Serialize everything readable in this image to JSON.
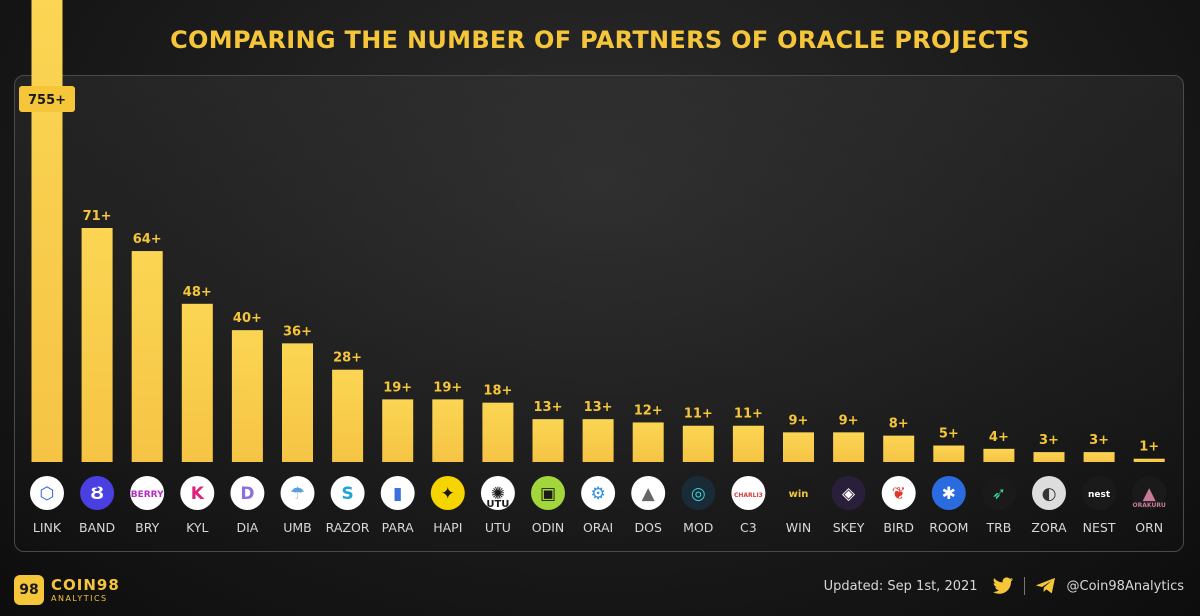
{
  "title": "COMPARING THE NUMBER OF PARTNERS OF ORACLE PROJECTS",
  "colors": {
    "bar_top": "#fbd553",
    "bar_bottom": "#f6c445",
    "accent": "#f5c53a",
    "label": "#f5c53a",
    "axis_text": "#d8d8d8"
  },
  "chart_data": {
    "type": "bar",
    "categories": [
      "LINK",
      "BAND",
      "BRY",
      "KYL",
      "DIA",
      "UMB",
      "RAZOR",
      "PARA",
      "HAPI",
      "UTU",
      "ODIN",
      "ORAI",
      "DOS",
      "MOD",
      "C3",
      "WIN",
      "SKEY",
      "BIRD",
      "ROOM",
      "TRB",
      "ZORA",
      "NEST",
      "ORN"
    ],
    "values": [
      755,
      71,
      64,
      48,
      40,
      36,
      28,
      19,
      19,
      18,
      13,
      13,
      12,
      11,
      11,
      9,
      9,
      8,
      5,
      4,
      3,
      3,
      1
    ],
    "data_labels": [
      "755+",
      "71+",
      "64+",
      "48+",
      "40+",
      "36+",
      "28+",
      "19+",
      "19+",
      "18+",
      "13+",
      "13+",
      "12+",
      "11+",
      "11+",
      "9+",
      "9+",
      "8+",
      "5+",
      "4+",
      "3+",
      "3+",
      "1+"
    ],
    "scale_max": 80,
    "outlier_note": "LINK bar exceeds axis range",
    "grid": false,
    "legend": "none"
  },
  "logos": [
    {
      "name": "chainlink",
      "bg": "#ffffff",
      "fg": "#2a5ada",
      "glyph": "⬡",
      "text": ""
    },
    {
      "name": "band",
      "bg": "#4a3fe0",
      "fg": "#ffffff",
      "glyph": "Ȣ",
      "text": ""
    },
    {
      "name": "berry",
      "bg": "#ffffff",
      "fg": "#b42ec2",
      "glyph": "",
      "text": "BERRY"
    },
    {
      "name": "kylin",
      "bg": "#ffffff",
      "fg": "#e0217c",
      "glyph": "K",
      "text": ""
    },
    {
      "name": "dia",
      "bg": "#ffffff",
      "fg": "#8d6fe0",
      "glyph": "D",
      "text": ""
    },
    {
      "name": "umbrella",
      "bg": "#ffffff",
      "fg": "#5aa0d8",
      "glyph": "☂",
      "text": ""
    },
    {
      "name": "razor",
      "bg": "#ffffff",
      "fg": "#1fa4d8",
      "glyph": "S",
      "text": ""
    },
    {
      "name": "para",
      "bg": "#ffffff",
      "fg": "#3a6fe0",
      "glyph": "▮",
      "text": ""
    },
    {
      "name": "hapi",
      "bg": "#f5d400",
      "fg": "#1a1a1a",
      "glyph": "✦",
      "text": ""
    },
    {
      "name": "utu",
      "bg": "#ffffff",
      "fg": "#1a1a1a",
      "glyph": "✺",
      "text": "UTU"
    },
    {
      "name": "odin",
      "bg": "#a3d63a",
      "fg": "#1a1a1a",
      "glyph": "▣",
      "text": ""
    },
    {
      "name": "orai",
      "bg": "#ffffff",
      "fg": "#2e8fe0",
      "glyph": "⚙",
      "text": ""
    },
    {
      "name": "dos",
      "bg": "#ffffff",
      "fg": "#666666",
      "glyph": "▲",
      "text": ""
    },
    {
      "name": "mod",
      "bg": "#1a2b38",
      "fg": "#3bd0d8",
      "glyph": "◎",
      "text": ""
    },
    {
      "name": "charli3",
      "bg": "#ffffff",
      "fg": "#d83a3a",
      "glyph": "",
      "text": "CHARLI3"
    },
    {
      "name": "wink",
      "bg": "#1a1a1a",
      "fg": "#f5c53a",
      "glyph": "",
      "text": "win"
    },
    {
      "name": "skey",
      "bg": "#2a1f3a",
      "fg": "#ffffff",
      "glyph": "◈",
      "text": ""
    },
    {
      "name": "bird",
      "bg": "#ffffff",
      "fg": "#e0382a",
      "glyph": "❦",
      "text": ""
    },
    {
      "name": "room",
      "bg": "#2a6be0",
      "fg": "#ffffff",
      "glyph": "✱",
      "text": ""
    },
    {
      "name": "tellor",
      "bg": "#1a1a1a",
      "fg": "#3ad98a",
      "glyph": "➶",
      "text": ""
    },
    {
      "name": "zora",
      "bg": "#dddddd",
      "fg": "#333333",
      "glyph": "◐",
      "text": ""
    },
    {
      "name": "nest",
      "bg": "#1a1a1a",
      "fg": "#ffffff",
      "glyph": "",
      "text": "nest"
    },
    {
      "name": "orakuru",
      "bg": "#1a1a1a",
      "fg": "#c87a9a",
      "glyph": "▲",
      "text": "ORAKURU"
    }
  ],
  "footer": {
    "brand": "COIN98",
    "brand_sub": "ANALYTICS",
    "brand_badge": "98",
    "updated": "Updated: Sep 1st, 2021",
    "twitter_icon": "twitter-icon",
    "telegram_icon": "telegram-icon",
    "handle": "@Coin98Analytics"
  }
}
